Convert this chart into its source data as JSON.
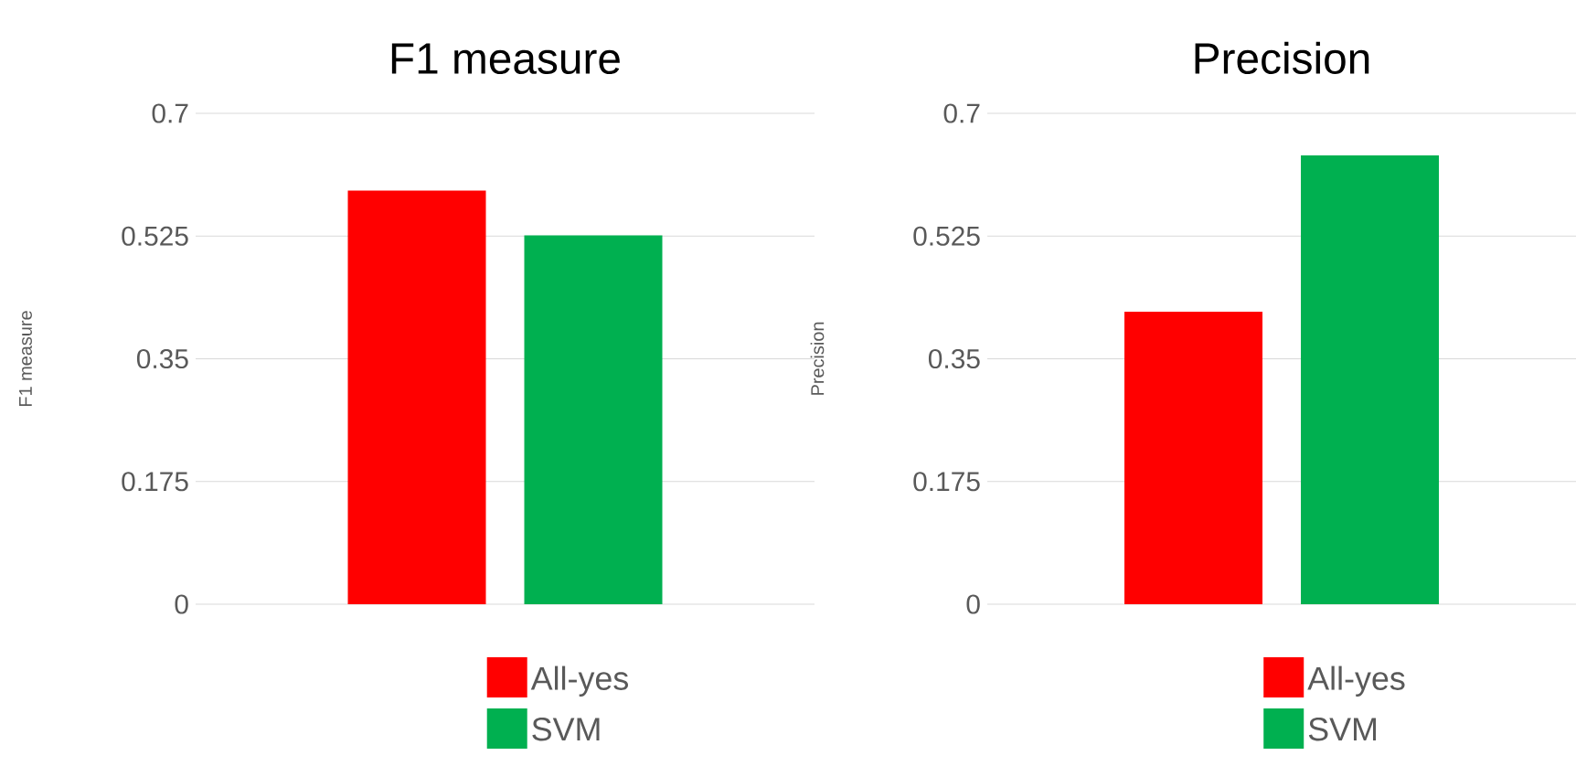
{
  "chart_data": [
    {
      "type": "bar",
      "title": "F1 measure",
      "ylabel": "F1 measure",
      "categories": [
        null
      ],
      "series": [
        {
          "name": "All-yes",
          "color": "#ff0000",
          "values": [
            0.59
          ]
        },
        {
          "name": "SVM",
          "color": "#00b050",
          "values": [
            0.526
          ]
        }
      ],
      "ylim": [
        0,
        0.7
      ],
      "yticks": [
        0,
        0.175,
        0.35,
        0.525,
        0.7
      ],
      "grid": "y",
      "legend": "bottom"
    },
    {
      "type": "bar",
      "title": "Precision",
      "ylabel": "Precision",
      "categories": [
        null
      ],
      "series": [
        {
          "name": "All-yes",
          "color": "#ff0000",
          "values": [
            0.417
          ]
        },
        {
          "name": "SVM",
          "color": "#00b050",
          "values": [
            0.64
          ]
        }
      ],
      "ylim": [
        0,
        0.7
      ],
      "yticks": [
        0,
        0.175,
        0.35,
        0.525,
        0.7
      ],
      "grid": "y",
      "legend": "bottom"
    }
  ]
}
